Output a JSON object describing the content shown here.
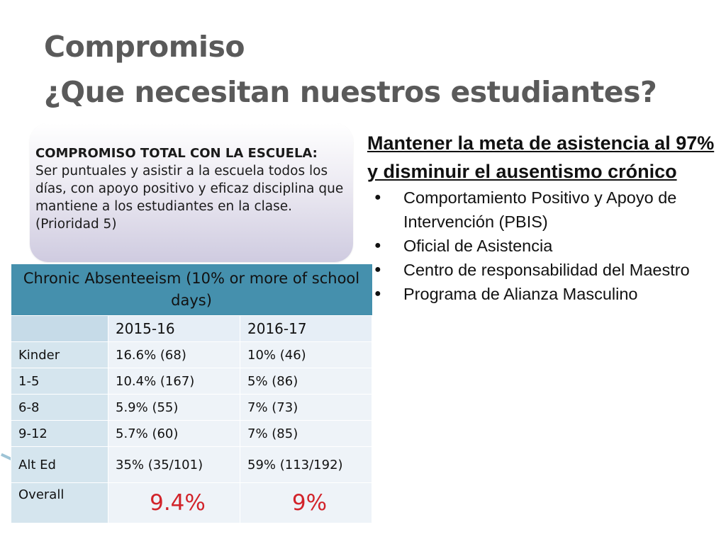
{
  "title": {
    "line1": "Compromiso",
    "line2": "¿Que necesitan nuestros estudiantes?"
  },
  "callout": {
    "heading": "COMPROMISO TOTAL CON LA ESCUELA:",
    "body": "Ser puntuales y asistir a la escuela todos los días, con apoyo positivo y eficaz disciplina que mantiene a los estudiantes en la clase.  (Prioridad 5)"
  },
  "goal": {
    "heading": "Mantener la meta de asistencia al 97% y disminuir el ausentismo crónico",
    "bullets": [
      "Comportamiento Positivo y Apoyo de Intervención (PBIS)",
      "Oficial de Asistencia",
      "Centro de responsabilidad del Maestro",
      "Programa de Alianza Masculino"
    ]
  },
  "table": {
    "title": "Chronic Absenteeism (10% or more of school days)",
    "columns": [
      "",
      "2015-16",
      "2016-17"
    ],
    "rows": [
      [
        "Kinder",
        "16.6% (68)",
        "10% (46)"
      ],
      [
        "1-5",
        "10.4% (167)",
        "5% (86)"
      ],
      [
        "6-8",
        "5.9% (55)",
        "7% (73)"
      ],
      [
        "9-12",
        "5.7% (60)",
        "7% (85)"
      ],
      [
        "Alt Ed",
        "35% (35/101)",
        "59% (113/192)"
      ],
      [
        "Overall",
        "9.4%",
        "9%"
      ]
    ]
  },
  "colors": {
    "title": "#5a5a5a",
    "table_header": "#4590ad",
    "highlight": "#d2232a"
  }
}
